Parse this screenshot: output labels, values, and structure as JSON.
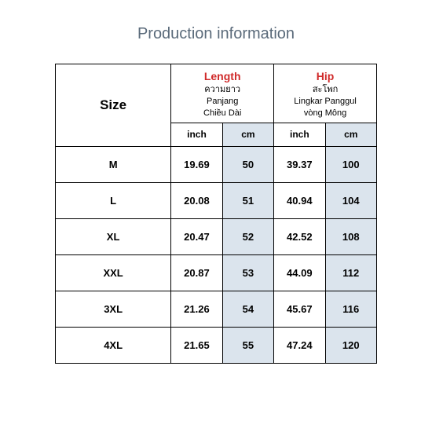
{
  "title": "Production information",
  "sizeLabel": "Size",
  "headers": {
    "length": {
      "eng": "Length",
      "th": "ความยาว",
      "id": "Panjang",
      "vi": "Chiều Dài"
    },
    "hip": {
      "eng": "Hip",
      "th": "สะโพก",
      "id": "Lingkar Panggul",
      "vi": "vòng Mông"
    }
  },
  "units": {
    "inch": "inch",
    "cm": "cm"
  },
  "colors": {
    "cm_bg": "#dbe4ed",
    "eng_color": "#d02a2a",
    "title_color": "#5a6a7a",
    "border": "#000000"
  },
  "rows": [
    {
      "size": "M",
      "length_in": "19.69",
      "length_cm": "50",
      "hip_in": "39.37",
      "hip_cm": "100"
    },
    {
      "size": "L",
      "length_in": "20.08",
      "length_cm": "51",
      "hip_in": "40.94",
      "hip_cm": "104"
    },
    {
      "size": "XL",
      "length_in": "20.47",
      "length_cm": "52",
      "hip_in": "42.52",
      "hip_cm": "108"
    },
    {
      "size": "XXL",
      "length_in": "20.87",
      "length_cm": "53",
      "hip_in": "44.09",
      "hip_cm": "112"
    },
    {
      "size": "3XL",
      "length_in": "21.26",
      "length_cm": "54",
      "hip_in": "45.67",
      "hip_cm": "116"
    },
    {
      "size": "4XL",
      "length_in": "21.65",
      "length_cm": "55",
      "hip_in": "47.24",
      "hip_cm": "120"
    }
  ]
}
